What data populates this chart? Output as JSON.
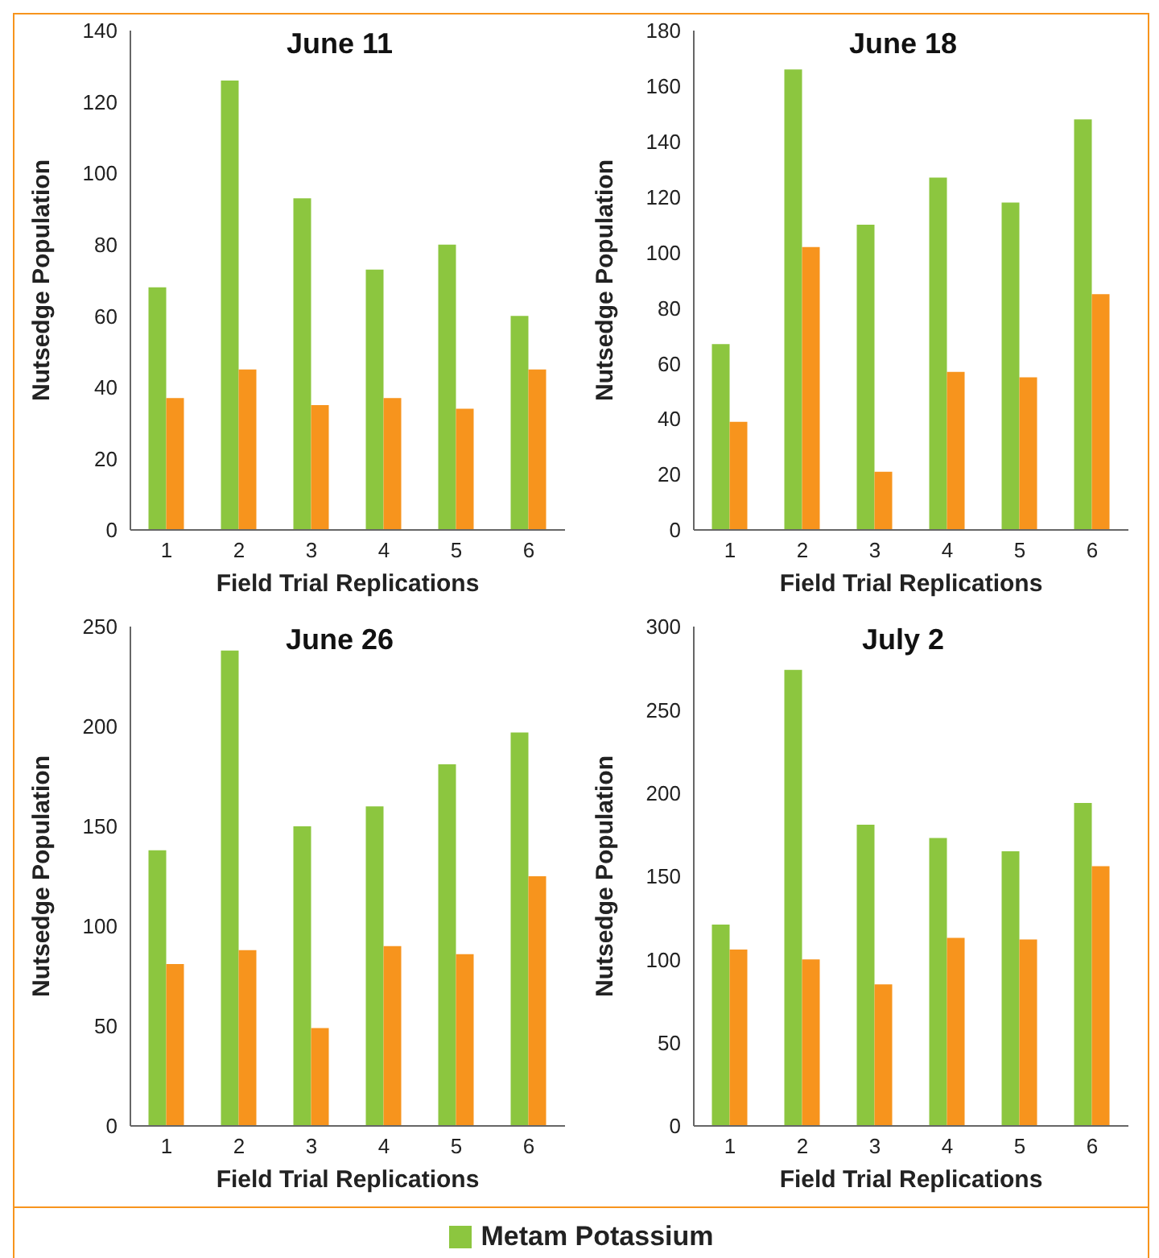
{
  "chart_data": [
    {
      "type": "bar",
      "title": "June 11",
      "xlabel": "Field Trial Replications",
      "ylabel": "Nutsedge Population",
      "categories": [
        "1",
        "2",
        "3",
        "4",
        "5",
        "6"
      ],
      "ylim": [
        0,
        140
      ],
      "yticks": [
        0,
        20,
        40,
        60,
        80,
        100,
        120,
        140
      ],
      "grid": false,
      "series": [
        {
          "color": "#8cc63f",
          "values": [
            68,
            126,
            93,
            73,
            80,
            60
          ]
        },
        {
          "color": "#f7941d",
          "values": [
            37,
            45,
            35,
            37,
            34,
            45
          ]
        }
      ]
    },
    {
      "type": "bar",
      "title": "June 18",
      "xlabel": "Field Trial Replications",
      "ylabel": "Nutsedge Population",
      "categories": [
        "1",
        "2",
        "3",
        "4",
        "5",
        "6"
      ],
      "ylim": [
        0,
        180
      ],
      "yticks": [
        0,
        20,
        40,
        60,
        80,
        100,
        120,
        140,
        160,
        180
      ],
      "grid": false,
      "series": [
        {
          "color": "#8cc63f",
          "values": [
            67,
            166,
            110,
            127,
            118,
            148
          ]
        },
        {
          "color": "#f7941d",
          "values": [
            39,
            102,
            21,
            57,
            55,
            85
          ]
        }
      ]
    },
    {
      "type": "bar",
      "title": "June 26",
      "xlabel": "Field Trial Replications",
      "ylabel": "Nutsedge Population",
      "categories": [
        "1",
        "2",
        "3",
        "4",
        "5",
        "6"
      ],
      "ylim": [
        0,
        250
      ],
      "yticks": [
        0,
        50,
        100,
        150,
        200,
        250
      ],
      "grid": false,
      "series": [
        {
          "color": "#8cc63f",
          "values": [
            138,
            238,
            150,
            160,
            181,
            197
          ]
        },
        {
          "color": "#f7941d",
          "values": [
            81,
            88,
            49,
            90,
            86,
            125
          ]
        }
      ]
    },
    {
      "type": "bar",
      "title": "July 2",
      "xlabel": "Field Trial Replications",
      "ylabel": "Nutsedge Population",
      "categories": [
        "1",
        "2",
        "3",
        "4",
        "5",
        "6"
      ],
      "ylim": [
        0,
        300
      ],
      "yticks": [
        0,
        50,
        100,
        150,
        200,
        250,
        300
      ],
      "grid": false,
      "legend": "bottom",
      "series": [
        {
          "name": "Metam Potassium",
          "color": "#8cc63f",
          "values": [
            121,
            274,
            181,
            173,
            165,
            194
          ]
        },
        {
          "color": "#f7941d",
          "values": [
            106,
            100,
            85,
            113,
            112,
            156
          ]
        }
      ]
    }
  ]
}
